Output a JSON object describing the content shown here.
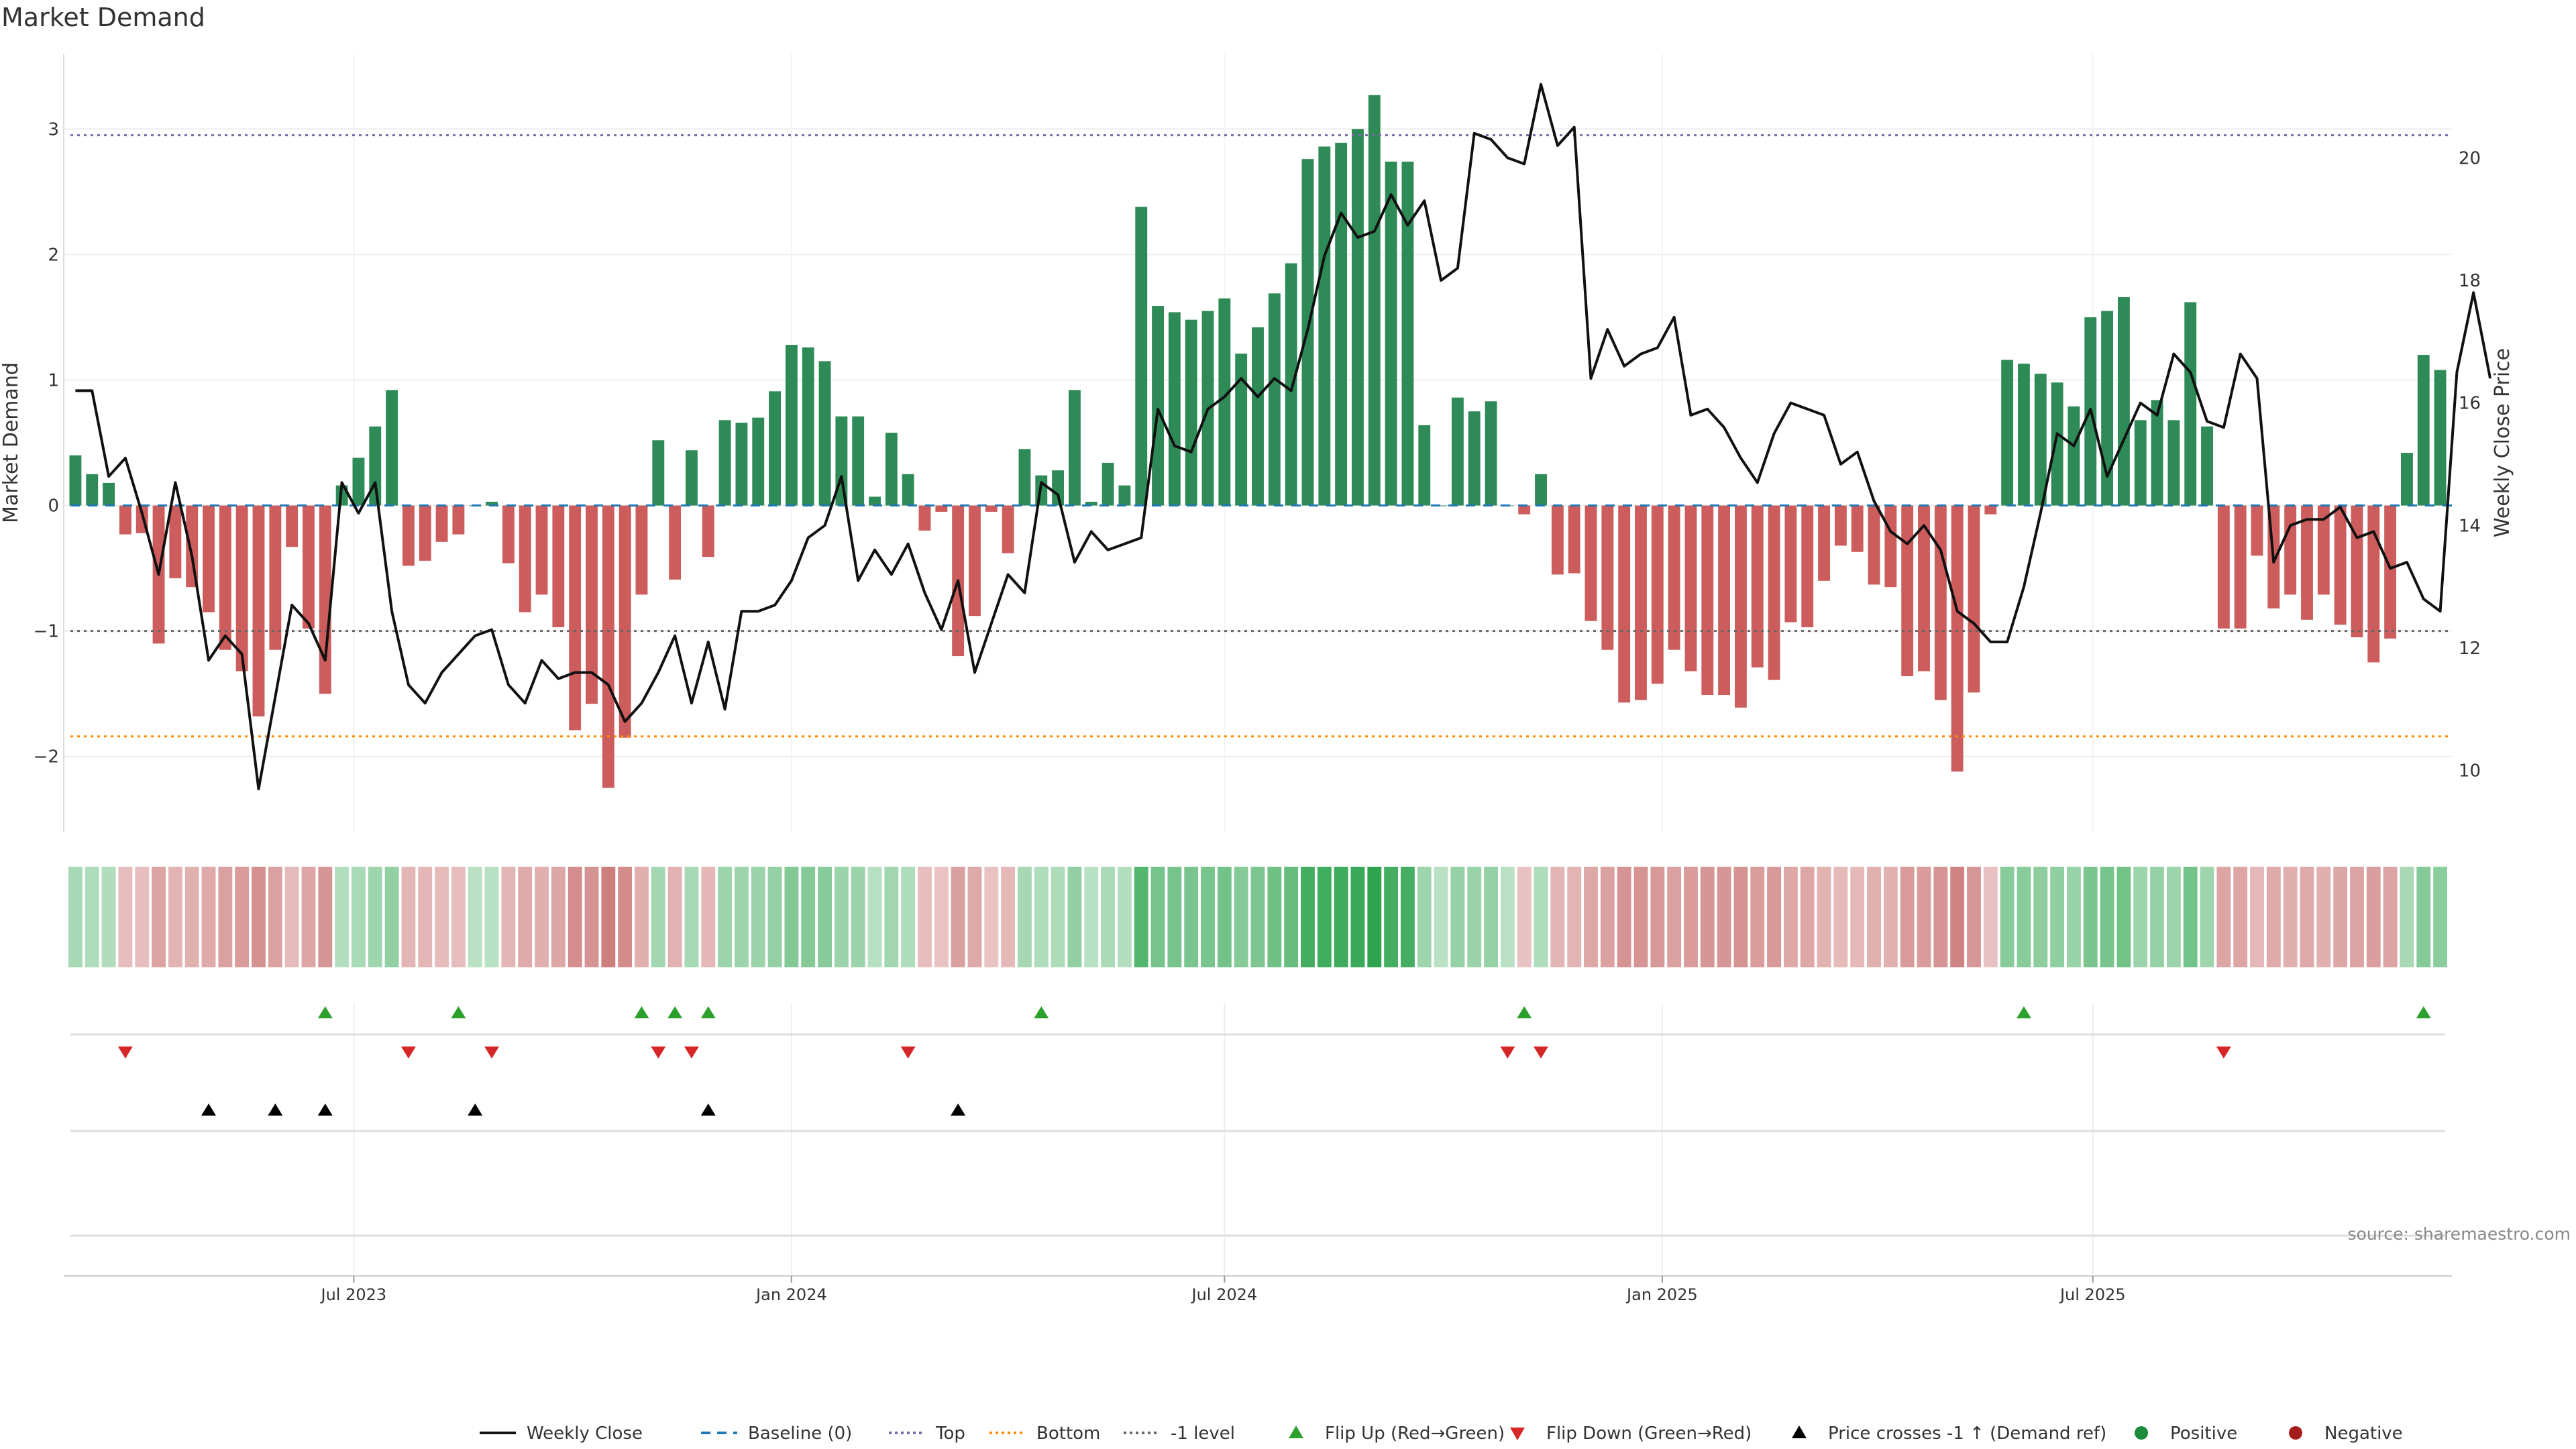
{
  "chart_data": {
    "type": "bar",
    "title": "Market Demand",
    "ylabel": "Market Demand",
    "y2label": "Weekly Close Price",
    "ylim": [
      -2.6,
      3.6
    ],
    "y2lim": [
      9,
      21.7
    ],
    "yticks": [
      3,
      2,
      1,
      0,
      -1,
      -2
    ],
    "y2ticks": [
      20,
      18,
      16,
      14,
      12,
      10
    ],
    "x_start_week": "2023-03-06",
    "xticks": [
      {
        "label": "Jul 2023",
        "date": "2023-07-01"
      },
      {
        "label": "Jan 2024",
        "date": "2024-01-01"
      },
      {
        "label": "Jul 2024",
        "date": "2024-07-01"
      },
      {
        "label": "Jan 2025",
        "date": "2025-01-01"
      },
      {
        "label": "Jul 2025",
        "date": "2025-07-01"
      }
    ],
    "levels": {
      "top": 2.95,
      "bottom": -1.84,
      "minus_one": -1.0,
      "baseline": 0
    },
    "colors": {
      "positive": "#2e8b57",
      "negative": "#cd5c5c",
      "close": "#111111",
      "baseline": "#1f77b4",
      "top": "#7b68a6",
      "bottom": "#ff8c00",
      "minus_one": "#666666",
      "flip_up": "#2ca02c",
      "flip_down": "#d62728",
      "cross": "#000000"
    },
    "grid": true,
    "demand": [
      0.4,
      0.25,
      0.18,
      -0.23,
      -0.22,
      -1.1,
      -0.58,
      -0.65,
      -0.85,
      -1.15,
      -1.32,
      -1.68,
      -1.15,
      -0.33,
      -0.98,
      -1.5,
      0.16,
      0.38,
      0.63,
      0.92,
      -0.48,
      -0.44,
      -0.29,
      -0.23,
      0.0,
      0.03,
      -0.46,
      -0.85,
      -0.71,
      -0.97,
      -1.79,
      -1.58,
      -2.25,
      -1.85,
      -0.71,
      0.52,
      -0.59,
      0.44,
      -0.41,
      0.68,
      0.66,
      0.7,
      0.91,
      1.28,
      1.26,
      1.15,
      0.71,
      0.71,
      0.07,
      0.58,
      0.25,
      -0.2,
      -0.05,
      -1.2,
      -0.88,
      -0.05,
      -0.38,
      0.45,
      0.24,
      0.28,
      0.92,
      0.03,
      0.34,
      0.16,
      2.38,
      1.59,
      1.54,
      1.48,
      1.55,
      1.65,
      1.21,
      1.42,
      1.69,
      1.93,
      2.76,
      2.86,
      2.89,
      3.0,
      3.27,
      2.74,
      2.74,
      0.64,
      0.0,
      0.86,
      0.75,
      0.83,
      0.0,
      -0.07,
      0.25,
      -0.55,
      -0.54,
      -0.92,
      -1.15,
      -1.57,
      -1.55,
      -1.42,
      -1.15,
      -1.32,
      -1.51,
      -1.51,
      -1.61,
      -1.29,
      -1.39,
      -0.93,
      -0.97,
      -0.6,
      -0.32,
      -0.37,
      -0.63,
      -0.65,
      -1.36,
      -1.32,
      -1.55,
      -2.12,
      -1.49,
      -0.07,
      1.16,
      1.13,
      1.05,
      0.98,
      0.79,
      1.5,
      1.55,
      1.66,
      0.68,
      0.84,
      0.68,
      1.62,
      0.63,
      -0.98,
      -0.98,
      -0.4,
      -0.82,
      -0.71,
      -0.91,
      -0.71,
      -0.95,
      -1.05,
      -1.25,
      -1.06,
      0.42,
      1.2,
      1.08
    ],
    "weekly_close": [
      16.2,
      16.2,
      14.8,
      15.1,
      14.2,
      13.2,
      14.7,
      13.5,
      11.8,
      12.2,
      11.9,
      9.7,
      11.2,
      12.7,
      12.4,
      11.8,
      14.7,
      14.2,
      14.7,
      12.6,
      11.4,
      11.1,
      11.6,
      11.9,
      12.2,
      12.3,
      11.4,
      11.1,
      11.8,
      11.5,
      11.6,
      11.6,
      11.4,
      10.8,
      11.1,
      11.6,
      12.2,
      11.1,
      12.1,
      11.0,
      12.6,
      12.6,
      12.7,
      13.1,
      13.8,
      14.0,
      14.8,
      13.1,
      13.6,
      13.2,
      13.7,
      12.9,
      12.3,
      13.1,
      11.6,
      12.4,
      13.2,
      12.9,
      14.7,
      14.5,
      13.4,
      13.9,
      13.6,
      13.7,
      13.8,
      15.9,
      15.3,
      15.2,
      15.9,
      16.1,
      16.4,
      16.1,
      16.4,
      16.2,
      17.2,
      18.4,
      19.1,
      18.7,
      18.8,
      19.4,
      18.9,
      19.3,
      18.0,
      18.2,
      20.4,
      20.3,
      20.0,
      19.9,
      21.2,
      20.2,
      20.5,
      16.4,
      17.2,
      16.6,
      16.8,
      16.9,
      17.4,
      15.8,
      15.9,
      15.6,
      15.1,
      14.7,
      15.5,
      16.0,
      15.9,
      15.8,
      15.0,
      15.2,
      14.4,
      13.9,
      13.7,
      14.0,
      13.6,
      12.6,
      12.4,
      12.1,
      12.1,
      13.0,
      14.2,
      15.5,
      15.3,
      15.9,
      14.8,
      15.4,
      16.0,
      15.8,
      16.8,
      16.5,
      15.7,
      15.6,
      16.8,
      16.4,
      13.4,
      14.0,
      14.1,
      14.1,
      14.3,
      13.8,
      13.9,
      13.3,
      13.4,
      12.8,
      12.6,
      16.5,
      17.8,
      16.4
    ],
    "heatmap_band": "Weekly demand colour band (green = positive, red = negative, intensity = magnitude)",
    "events": {
      "flip_up": [
        "2023-06-19",
        "2023-08-14",
        "2023-10-30",
        "2023-11-13",
        "2023-11-27",
        "2024-04-15",
        "2024-11-04",
        "2025-06-02",
        "2025-11-17"
      ],
      "flip_down": [
        "2023-03-27",
        "2023-07-24",
        "2023-08-28",
        "2023-11-06",
        "2023-11-20",
        "2024-02-19",
        "2024-10-28",
        "2024-11-11",
        "2025-08-25"
      ],
      "price_cross_minus_one_up": [
        "2023-05-01",
        "2023-05-29",
        "2023-06-19",
        "2023-08-21",
        "2023-11-27",
        "2024-03-11"
      ]
    },
    "legend": [
      {
        "label": "Weekly Close",
        "kind": "line",
        "color": "#111111"
      },
      {
        "label": "Baseline (0)",
        "kind": "dash",
        "color": "#1f77b4"
      },
      {
        "label": "Top",
        "kind": "dot",
        "color": "#7b68a6"
      },
      {
        "label": "Bottom",
        "kind": "dot",
        "color": "#ff8c00"
      },
      {
        "label": "-1 level",
        "kind": "dot",
        "color": "#666666"
      },
      {
        "label": "Flip Up (Red→Green)",
        "kind": "tri-up",
        "color": "#2ca02c"
      },
      {
        "label": "Flip Down (Green→Red)",
        "kind": "tri-down",
        "color": "#d62728"
      },
      {
        "label": "Price crosses -1 ↑ (Demand ref)",
        "kind": "tri-up",
        "color": "#000000"
      },
      {
        "label": "Positive",
        "kind": "circle",
        "color": "#1e8a3c"
      },
      {
        "label": "Negative",
        "kind": "circle",
        "color": "#a51d1d"
      }
    ],
    "legend_position": "bottom-center",
    "source": "source: sharemaestro.com"
  }
}
